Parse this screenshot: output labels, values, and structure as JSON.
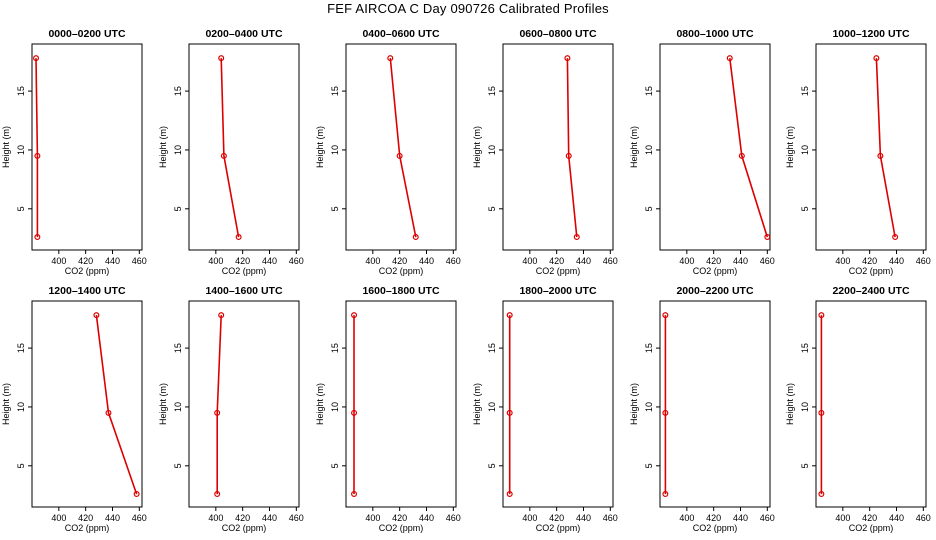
{
  "title": "FEF AIRCOA C  Day 090726  Calibrated Profiles",
  "colors": {
    "profile": "#dd0000",
    "axis": "#000000"
  },
  "chart_data": [
    {
      "type": "line",
      "title": "0000–0200 UTC",
      "xlabel": "CO2 (ppm)",
      "ylabel": "Height (m)",
      "xlim": [
        380,
        462
      ],
      "ylim": [
        1.5,
        19
      ],
      "xticks": [
        "400",
        "420",
        "440",
        "460"
      ],
      "yticks": [
        "5",
        "10",
        "15"
      ],
      "grid": false,
      "series": [
        {
          "x": [
            383,
            384,
            384
          ],
          "y": [
            17.8,
            9.5,
            2.6
          ]
        }
      ]
    },
    {
      "type": "line",
      "title": "0200–0400 UTC",
      "xlabel": "CO2 (ppm)",
      "ylabel": "Height (m)",
      "xlim": [
        380,
        462
      ],
      "ylim": [
        1.5,
        19
      ],
      "xticks": [
        "400",
        "420",
        "440",
        "460"
      ],
      "yticks": [
        "5",
        "10",
        "15"
      ],
      "grid": false,
      "series": [
        {
          "x": [
            404,
            406,
            417
          ],
          "y": [
            17.8,
            9.5,
            2.6
          ]
        }
      ]
    },
    {
      "type": "line",
      "title": "0400–0600 UTC",
      "xlabel": "CO2 (ppm)",
      "ylabel": "Height (m)",
      "xlim": [
        380,
        462
      ],
      "ylim": [
        1.5,
        19
      ],
      "xticks": [
        "400",
        "420",
        "440",
        "460"
      ],
      "yticks": [
        "5",
        "10",
        "15"
      ],
      "grid": false,
      "series": [
        {
          "x": [
            413,
            420,
            432
          ],
          "y": [
            17.8,
            9.5,
            2.6
          ]
        }
      ]
    },
    {
      "type": "line",
      "title": "0600–0800 UTC",
      "xlabel": "CO2 (ppm)",
      "ylabel": "Height (m)",
      "xlim": [
        380,
        462
      ],
      "ylim": [
        1.5,
        19
      ],
      "xticks": [
        "400",
        "420",
        "440",
        "460"
      ],
      "yticks": [
        "5",
        "10",
        "15"
      ],
      "grid": false,
      "series": [
        {
          "x": [
            428,
            429,
            435
          ],
          "y": [
            17.8,
            9.5,
            2.6
          ]
        }
      ]
    },
    {
      "type": "line",
      "title": "0800–1000 UTC",
      "xlabel": "CO2 (ppm)",
      "ylabel": "Height (m)",
      "xlim": [
        380,
        462
      ],
      "ylim": [
        1.5,
        19
      ],
      "xticks": [
        "400",
        "420",
        "440",
        "460"
      ],
      "yticks": [
        "5",
        "10",
        "15"
      ],
      "grid": false,
      "series": [
        {
          "x": [
            432,
            441,
            460
          ],
          "y": [
            17.8,
            9.5,
            2.6
          ]
        }
      ]
    },
    {
      "type": "line",
      "title": "1000–1200 UTC",
      "xlabel": "CO2 (ppm)",
      "ylabel": "Height (m)",
      "xlim": [
        380,
        462
      ],
      "ylim": [
        1.5,
        19
      ],
      "xticks": [
        "400",
        "420",
        "440",
        "460"
      ],
      "yticks": [
        "5",
        "10",
        "15"
      ],
      "grid": false,
      "series": [
        {
          "x": [
            425,
            428,
            439
          ],
          "y": [
            17.8,
            9.5,
            2.6
          ]
        }
      ]
    },
    {
      "type": "line",
      "title": "1200–1400 UTC",
      "xlabel": "CO2 (ppm)",
      "ylabel": "Height (m)",
      "xlim": [
        380,
        462
      ],
      "ylim": [
        1.5,
        19
      ],
      "xticks": [
        "400",
        "420",
        "440",
        "460"
      ],
      "yticks": [
        "5",
        "10",
        "15"
      ],
      "grid": false,
      "series": [
        {
          "x": [
            428,
            437,
            458
          ],
          "y": [
            17.8,
            9.5,
            2.6
          ]
        }
      ]
    },
    {
      "type": "line",
      "title": "1400–1600 UTC",
      "xlabel": "CO2 (ppm)",
      "ylabel": "Height (m)",
      "xlim": [
        380,
        462
      ],
      "ylim": [
        1.5,
        19
      ],
      "xticks": [
        "400",
        "420",
        "440",
        "460"
      ],
      "yticks": [
        "5",
        "10",
        "15"
      ],
      "grid": false,
      "series": [
        {
          "x": [
            404,
            401,
            401
          ],
          "y": [
            17.8,
            9.5,
            2.6
          ]
        }
      ]
    },
    {
      "type": "line",
      "title": "1600–1800 UTC",
      "xlabel": "CO2 (ppm)",
      "ylabel": "Height (m)",
      "xlim": [
        380,
        462
      ],
      "ylim": [
        1.5,
        19
      ],
      "xticks": [
        "400",
        "420",
        "440",
        "460"
      ],
      "yticks": [
        "5",
        "10",
        "15"
      ],
      "grid": false,
      "series": [
        {
          "x": [
            386,
            386,
            386
          ],
          "y": [
            17.8,
            9.5,
            2.6
          ]
        }
      ]
    },
    {
      "type": "line",
      "title": "1800–2000 UTC",
      "xlabel": "CO2 (ppm)",
      "ylabel": "Height (m)",
      "xlim": [
        380,
        462
      ],
      "ylim": [
        1.5,
        19
      ],
      "xticks": [
        "400",
        "420",
        "440",
        "460"
      ],
      "yticks": [
        "5",
        "10",
        "15"
      ],
      "grid": false,
      "series": [
        {
          "x": [
            385,
            385,
            385
          ],
          "y": [
            17.8,
            9.5,
            2.6
          ]
        }
      ]
    },
    {
      "type": "line",
      "title": "2000–2200 UTC",
      "xlabel": "CO2 (ppm)",
      "ylabel": "Height (m)",
      "xlim": [
        380,
        462
      ],
      "ylim": [
        1.5,
        19
      ],
      "xticks": [
        "400",
        "420",
        "440",
        "460"
      ],
      "yticks": [
        "5",
        "10",
        "15"
      ],
      "grid": false,
      "series": [
        {
          "x": [
            384,
            384,
            384
          ],
          "y": [
            17.8,
            9.5,
            2.6
          ]
        }
      ]
    },
    {
      "type": "line",
      "title": "2200–2400 UTC",
      "xlabel": "CO2 (ppm)",
      "ylabel": "Height (m)",
      "xlim": [
        380,
        462
      ],
      "ylim": [
        1.5,
        19
      ],
      "xticks": [
        "400",
        "420",
        "440",
        "460"
      ],
      "yticks": [
        "5",
        "10",
        "15"
      ],
      "grid": false,
      "series": [
        {
          "x": [
            384,
            384,
            384
          ],
          "y": [
            17.8,
            9.5,
            2.6
          ]
        }
      ]
    }
  ]
}
